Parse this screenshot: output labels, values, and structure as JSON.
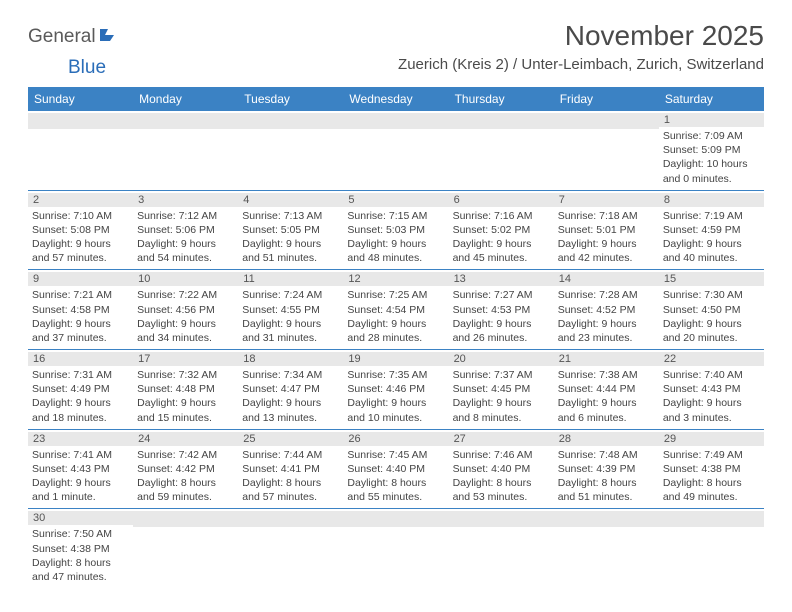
{
  "logo": {
    "part1": "General",
    "part2": "Blue"
  },
  "title": "November 2025",
  "location": "Zuerich (Kreis 2) / Unter-Leimbach, Zurich, Switzerland",
  "colors": {
    "header_bg": "#3b82c4",
    "header_text": "#ffffff",
    "band_bg": "#e8e8e8",
    "rule": "#3b82c4",
    "title_color": "#4a4a4a",
    "body_text": "#444444"
  },
  "day_names": [
    "Sunday",
    "Monday",
    "Tuesday",
    "Wednesday",
    "Thursday",
    "Friday",
    "Saturday"
  ],
  "weeks": [
    [
      {
        "day": "",
        "sunrise": "",
        "sunset": "",
        "daylight": ""
      },
      {
        "day": "",
        "sunrise": "",
        "sunset": "",
        "daylight": ""
      },
      {
        "day": "",
        "sunrise": "",
        "sunset": "",
        "daylight": ""
      },
      {
        "day": "",
        "sunrise": "",
        "sunset": "",
        "daylight": ""
      },
      {
        "day": "",
        "sunrise": "",
        "sunset": "",
        "daylight": ""
      },
      {
        "day": "",
        "sunrise": "",
        "sunset": "",
        "daylight": ""
      },
      {
        "day": "1",
        "sunrise": "Sunrise: 7:09 AM",
        "sunset": "Sunset: 5:09 PM",
        "daylight": "Daylight: 10 hours and 0 minutes."
      }
    ],
    [
      {
        "day": "2",
        "sunrise": "Sunrise: 7:10 AM",
        "sunset": "Sunset: 5:08 PM",
        "daylight": "Daylight: 9 hours and 57 minutes."
      },
      {
        "day": "3",
        "sunrise": "Sunrise: 7:12 AM",
        "sunset": "Sunset: 5:06 PM",
        "daylight": "Daylight: 9 hours and 54 minutes."
      },
      {
        "day": "4",
        "sunrise": "Sunrise: 7:13 AM",
        "sunset": "Sunset: 5:05 PM",
        "daylight": "Daylight: 9 hours and 51 minutes."
      },
      {
        "day": "5",
        "sunrise": "Sunrise: 7:15 AM",
        "sunset": "Sunset: 5:03 PM",
        "daylight": "Daylight: 9 hours and 48 minutes."
      },
      {
        "day": "6",
        "sunrise": "Sunrise: 7:16 AM",
        "sunset": "Sunset: 5:02 PM",
        "daylight": "Daylight: 9 hours and 45 minutes."
      },
      {
        "day": "7",
        "sunrise": "Sunrise: 7:18 AM",
        "sunset": "Sunset: 5:01 PM",
        "daylight": "Daylight: 9 hours and 42 minutes."
      },
      {
        "day": "8",
        "sunrise": "Sunrise: 7:19 AM",
        "sunset": "Sunset: 4:59 PM",
        "daylight": "Daylight: 9 hours and 40 minutes."
      }
    ],
    [
      {
        "day": "9",
        "sunrise": "Sunrise: 7:21 AM",
        "sunset": "Sunset: 4:58 PM",
        "daylight": "Daylight: 9 hours and 37 minutes."
      },
      {
        "day": "10",
        "sunrise": "Sunrise: 7:22 AM",
        "sunset": "Sunset: 4:56 PM",
        "daylight": "Daylight: 9 hours and 34 minutes."
      },
      {
        "day": "11",
        "sunrise": "Sunrise: 7:24 AM",
        "sunset": "Sunset: 4:55 PM",
        "daylight": "Daylight: 9 hours and 31 minutes."
      },
      {
        "day": "12",
        "sunrise": "Sunrise: 7:25 AM",
        "sunset": "Sunset: 4:54 PM",
        "daylight": "Daylight: 9 hours and 28 minutes."
      },
      {
        "day": "13",
        "sunrise": "Sunrise: 7:27 AM",
        "sunset": "Sunset: 4:53 PM",
        "daylight": "Daylight: 9 hours and 26 minutes."
      },
      {
        "day": "14",
        "sunrise": "Sunrise: 7:28 AM",
        "sunset": "Sunset: 4:52 PM",
        "daylight": "Daylight: 9 hours and 23 minutes."
      },
      {
        "day": "15",
        "sunrise": "Sunrise: 7:30 AM",
        "sunset": "Sunset: 4:50 PM",
        "daylight": "Daylight: 9 hours and 20 minutes."
      }
    ],
    [
      {
        "day": "16",
        "sunrise": "Sunrise: 7:31 AM",
        "sunset": "Sunset: 4:49 PM",
        "daylight": "Daylight: 9 hours and 18 minutes."
      },
      {
        "day": "17",
        "sunrise": "Sunrise: 7:32 AM",
        "sunset": "Sunset: 4:48 PM",
        "daylight": "Daylight: 9 hours and 15 minutes."
      },
      {
        "day": "18",
        "sunrise": "Sunrise: 7:34 AM",
        "sunset": "Sunset: 4:47 PM",
        "daylight": "Daylight: 9 hours and 13 minutes."
      },
      {
        "day": "19",
        "sunrise": "Sunrise: 7:35 AM",
        "sunset": "Sunset: 4:46 PM",
        "daylight": "Daylight: 9 hours and 10 minutes."
      },
      {
        "day": "20",
        "sunrise": "Sunrise: 7:37 AM",
        "sunset": "Sunset: 4:45 PM",
        "daylight": "Daylight: 9 hours and 8 minutes."
      },
      {
        "day": "21",
        "sunrise": "Sunrise: 7:38 AM",
        "sunset": "Sunset: 4:44 PM",
        "daylight": "Daylight: 9 hours and 6 minutes."
      },
      {
        "day": "22",
        "sunrise": "Sunrise: 7:40 AM",
        "sunset": "Sunset: 4:43 PM",
        "daylight": "Daylight: 9 hours and 3 minutes."
      }
    ],
    [
      {
        "day": "23",
        "sunrise": "Sunrise: 7:41 AM",
        "sunset": "Sunset: 4:43 PM",
        "daylight": "Daylight: 9 hours and 1 minute."
      },
      {
        "day": "24",
        "sunrise": "Sunrise: 7:42 AM",
        "sunset": "Sunset: 4:42 PM",
        "daylight": "Daylight: 8 hours and 59 minutes."
      },
      {
        "day": "25",
        "sunrise": "Sunrise: 7:44 AM",
        "sunset": "Sunset: 4:41 PM",
        "daylight": "Daylight: 8 hours and 57 minutes."
      },
      {
        "day": "26",
        "sunrise": "Sunrise: 7:45 AM",
        "sunset": "Sunset: 4:40 PM",
        "daylight": "Daylight: 8 hours and 55 minutes."
      },
      {
        "day": "27",
        "sunrise": "Sunrise: 7:46 AM",
        "sunset": "Sunset: 4:40 PM",
        "daylight": "Daylight: 8 hours and 53 minutes."
      },
      {
        "day": "28",
        "sunrise": "Sunrise: 7:48 AM",
        "sunset": "Sunset: 4:39 PM",
        "daylight": "Daylight: 8 hours and 51 minutes."
      },
      {
        "day": "29",
        "sunrise": "Sunrise: 7:49 AM",
        "sunset": "Sunset: 4:38 PM",
        "daylight": "Daylight: 8 hours and 49 minutes."
      }
    ],
    [
      {
        "day": "30",
        "sunrise": "Sunrise: 7:50 AM",
        "sunset": "Sunset: 4:38 PM",
        "daylight": "Daylight: 8 hours and 47 minutes."
      },
      {
        "day": "",
        "sunrise": "",
        "sunset": "",
        "daylight": ""
      },
      {
        "day": "",
        "sunrise": "",
        "sunset": "",
        "daylight": ""
      },
      {
        "day": "",
        "sunrise": "",
        "sunset": "",
        "daylight": ""
      },
      {
        "day": "",
        "sunrise": "",
        "sunset": "",
        "daylight": ""
      },
      {
        "day": "",
        "sunrise": "",
        "sunset": "",
        "daylight": ""
      },
      {
        "day": "",
        "sunrise": "",
        "sunset": "",
        "daylight": ""
      }
    ]
  ]
}
